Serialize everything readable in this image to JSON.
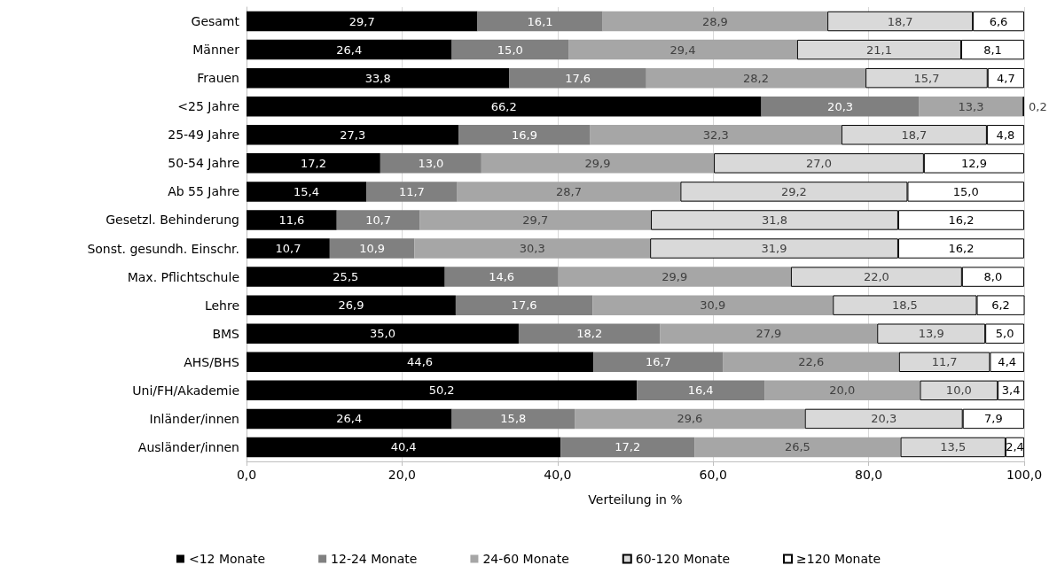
{
  "chart_data": {
    "type": "bar",
    "orientation": "horizontal",
    "stacked": true,
    "xlabel": "Verteilung in %",
    "categories": [
      "Gesamt",
      "Männer",
      "Frauen",
      "<25 Jahre",
      "25-49 Jahre",
      "50-54 Jahre",
      "Ab 55 Jahre",
      "Gesetzl. Behinderung",
      "Sonst. gesundh. Einschr.",
      "Max. Pflichtschule",
      "Lehre",
      "BMS",
      "AHS/BHS",
      "Uni/FH/Akademie",
      "Inländer/innen",
      "Ausländer/innen"
    ],
    "series": [
      {
        "name": "<12 Monate",
        "color": "#000000",
        "values": [
          29.7,
          26.4,
          33.8,
          66.2,
          27.3,
          17.2,
          15.4,
          11.6,
          10.7,
          25.5,
          26.9,
          35.0,
          44.6,
          50.2,
          26.4,
          40.4
        ],
        "value_labels": [
          "29,7",
          "26,4",
          "33,8",
          "66,2",
          "27,3",
          "17,2",
          "15,4",
          "11,6",
          "10,7",
          "25,5",
          "26,9",
          "35,0",
          "44,6",
          "50,2",
          "26,4",
          "40,4"
        ]
      },
      {
        "name": "12-24 Monate",
        "color": "#808080",
        "values": [
          16.1,
          15.0,
          17.6,
          20.3,
          16.9,
          13.0,
          11.7,
          10.7,
          10.9,
          14.6,
          17.6,
          18.2,
          16.7,
          16.4,
          15.8,
          17.2
        ],
        "value_labels": [
          "16,1",
          "15,0",
          "17,6",
          "20,3",
          "16,9",
          "13,0",
          "11,7",
          "10,7",
          "10,9",
          "14,6",
          "17,6",
          "18,2",
          "16,7",
          "16,4",
          "15,8",
          "17,2"
        ]
      },
      {
        "name": "24-60 Monate",
        "color": "#a6a6a6",
        "values": [
          28.9,
          29.4,
          28.2,
          13.3,
          32.3,
          29.9,
          28.7,
          29.7,
          30.3,
          29.9,
          30.9,
          27.9,
          22.6,
          20.0,
          29.6,
          26.5
        ],
        "value_labels": [
          "28,9",
          "29,4",
          "28,2",
          "13,3",
          "32,3",
          "29,9",
          "28,7",
          "29,7",
          "30,3",
          "29,9",
          "30,9",
          "27,9",
          "22,6",
          "20,0",
          "29,6",
          "26,5"
        ]
      },
      {
        "name": "60-120 Monate",
        "color": "#d9d9d9",
        "values": [
          18.7,
          21.1,
          15.7,
          null,
          18.7,
          27.0,
          29.2,
          31.8,
          31.9,
          22.0,
          18.5,
          13.9,
          11.7,
          10.0,
          20.3,
          13.5
        ],
        "value_labels": [
          "18,7",
          "21,1",
          "15,7",
          null,
          "18,7",
          "27,0",
          "29,2",
          "31,8",
          "31,9",
          "22,0",
          "18,5",
          "13,9",
          "11,7",
          "10,0",
          "20,3",
          "13,5"
        ]
      },
      {
        "name": "≥120 Monate",
        "color": "#ffffff",
        "values": [
          6.6,
          8.1,
          4.7,
          0.2,
          4.8,
          12.9,
          15.0,
          16.2,
          16.2,
          8.0,
          6.2,
          5.0,
          4.4,
          3.4,
          7.9,
          2.4
        ],
        "value_labels": [
          "6,6",
          "8,1",
          "4,7",
          "0,2",
          "4,8",
          "12,9",
          "15,0",
          "16,2",
          "16,2",
          "8,0",
          "6,2",
          "5,0",
          "4,4",
          "3,4",
          "7,9",
          "2,4"
        ]
      }
    ],
    "xlim": [
      0,
      100
    ],
    "xticks": [
      {
        "value": 0,
        "label": "0,0"
      },
      {
        "value": 20,
        "label": "20,0"
      },
      {
        "value": 40,
        "label": "40,0"
      },
      {
        "value": 60,
        "label": "60,0"
      },
      {
        "value": 80,
        "label": "80,0"
      },
      {
        "value": 100,
        "label": "100,0"
      }
    ],
    "grid": "x",
    "legend": "bottom"
  }
}
